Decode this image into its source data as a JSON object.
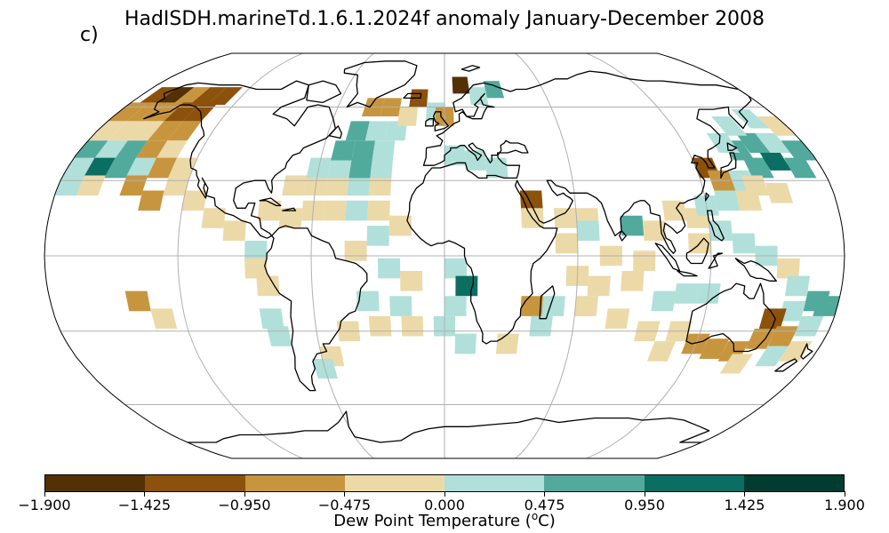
{
  "title": "HadISDH.marineTd.1.6.1.2024f anomaly January-December 2008",
  "panel_label": "c)",
  "colorbar": {
    "label_prefix": "Dew Point Temperature (",
    "label_sup": "o",
    "label_suffix": "C)",
    "ticks": [
      "−1.900",
      "−1.425",
      "−0.950",
      "−0.475",
      "0.000",
      "0.475",
      "0.950",
      "1.425",
      "1.900"
    ],
    "colors": [
      "#543005",
      "#8c510a",
      "#c8953f",
      "#ecd9a8",
      "#b0e0d9",
      "#52aa9d",
      "#0b6e62",
      "#003c30"
    ]
  },
  "map": {
    "projection": "Robinson",
    "ocean_fill": "#ffffff",
    "gridline_color": "#b0b0b0",
    "coastline_color": "#000000"
  },
  "cells": [
    {
      "c": 1,
      "lon": -170,
      "lat": 65
    },
    {
      "c": 0,
      "lon": -160,
      "lat": 65
    },
    {
      "c": 2,
      "lon": -150,
      "lat": 65
    },
    {
      "c": 1,
      "lon": -140,
      "lat": 65
    },
    {
      "c": 1,
      "lon": -130,
      "lat": 65
    },
    {
      "c": 2,
      "lon": -175,
      "lat": 58
    },
    {
      "c": 2,
      "lon": -165,
      "lat": 58
    },
    {
      "c": 2,
      "lon": -155,
      "lat": 58
    },
    {
      "c": 1,
      "lon": -145,
      "lat": 58
    },
    {
      "c": 1,
      "lon": -135,
      "lat": 58
    },
    {
      "c": 3,
      "lon": -175,
      "lat": 50
    },
    {
      "c": 3,
      "lon": -165,
      "lat": 50
    },
    {
      "c": 3,
      "lon": -155,
      "lat": 50
    },
    {
      "c": 2,
      "lon": -145,
      "lat": 50
    },
    {
      "c": 2,
      "lon": -135,
      "lat": 50
    },
    {
      "c": 5,
      "lon": -175,
      "lat": 42
    },
    {
      "c": 4,
      "lon": -165,
      "lat": 42
    },
    {
      "c": 5,
      "lon": -155,
      "lat": 42
    },
    {
      "c": 2,
      "lon": -145,
      "lat": 42
    },
    {
      "c": 3,
      "lon": -135,
      "lat": 42
    },
    {
      "c": 4,
      "lon": -175,
      "lat": 35
    },
    {
      "c": 6,
      "lon": -165,
      "lat": 35
    },
    {
      "c": 5,
      "lon": -155,
      "lat": 35
    },
    {
      "c": 4,
      "lon": -145,
      "lat": 35
    },
    {
      "c": 2,
      "lon": -135,
      "lat": 35
    },
    {
      "c": 3,
      "lon": -125,
      "lat": 35
    },
    {
      "c": 4,
      "lon": -175,
      "lat": 28
    },
    {
      "c": 3,
      "lon": -165,
      "lat": 28
    },
    {
      "c": 2,
      "lon": -145,
      "lat": 28
    },
    {
      "c": 3,
      "lon": -125,
      "lat": 28
    },
    {
      "c": 2,
      "lon": -135,
      "lat": 22
    },
    {
      "c": 3,
      "lon": -115,
      "lat": 22
    },
    {
      "c": 3,
      "lon": -105,
      "lat": 15
    },
    {
      "c": 3,
      "lon": -95,
      "lat": 10
    },
    {
      "c": 4,
      "lon": -85,
      "lat": 2
    },
    {
      "c": 3,
      "lon": -85,
      "lat": -5
    },
    {
      "c": 3,
      "lon": -80,
      "lat": -12
    },
    {
      "c": 2,
      "lon": -140,
      "lat": -18
    },
    {
      "c": 3,
      "lon": -130,
      "lat": -25
    },
    {
      "c": 4,
      "lon": -80,
      "lat": -25
    },
    {
      "c": 4,
      "lon": -78,
      "lat": -32
    },
    {
      "c": 3,
      "lon": -70,
      "lat": 28
    },
    {
      "c": 3,
      "lon": -60,
      "lat": 28
    },
    {
      "c": 3,
      "lon": -50,
      "lat": 28
    },
    {
      "c": 4,
      "lon": -40,
      "lat": 28
    },
    {
      "c": 3,
      "lon": -30,
      "lat": 28
    },
    {
      "c": 4,
      "lon": -60,
      "lat": 35
    },
    {
      "c": 4,
      "lon": -50,
      "lat": 35
    },
    {
      "c": 5,
      "lon": -40,
      "lat": 35
    },
    {
      "c": 4,
      "lon": -30,
      "lat": 35
    },
    {
      "c": 5,
      "lon": -50,
      "lat": 42
    },
    {
      "c": 5,
      "lon": -40,
      "lat": 42
    },
    {
      "c": 4,
      "lon": -30,
      "lat": 42
    },
    {
      "c": 5,
      "lon": -45,
      "lat": 50
    },
    {
      "c": 4,
      "lon": -35,
      "lat": 50
    },
    {
      "c": 4,
      "lon": -25,
      "lat": 50
    },
    {
      "c": 2,
      "lon": -40,
      "lat": 60
    },
    {
      "c": 2,
      "lon": -30,
      "lat": 60
    },
    {
      "c": 3,
      "lon": -20,
      "lat": 56
    },
    {
      "c": 1,
      "lon": -15,
      "lat": 64
    },
    {
      "c": 4,
      "lon": -5,
      "lat": 58
    },
    {
      "c": 2,
      "lon": 0,
      "lat": 56
    },
    {
      "c": 0,
      "lon": 10,
      "lat": 70
    },
    {
      "c": 4,
      "lon": 20,
      "lat": 65
    },
    {
      "c": 5,
      "lon": 30,
      "lat": 68
    },
    {
      "c": 3,
      "lon": -80,
      "lat": 18
    },
    {
      "c": 3,
      "lon": -70,
      "lat": 15
    },
    {
      "c": 3,
      "lon": -60,
      "lat": 18
    },
    {
      "c": 3,
      "lon": -50,
      "lat": 18
    },
    {
      "c": 4,
      "lon": -40,
      "lat": 18
    },
    {
      "c": 3,
      "lon": -30,
      "lat": 18
    },
    {
      "c": 3,
      "lon": -20,
      "lat": 12
    },
    {
      "c": 4,
      "lon": -30,
      "lat": 8
    },
    {
      "c": 3,
      "lon": -40,
      "lat": 2
    },
    {
      "c": 4,
      "lon": -25,
      "lat": -5
    },
    {
      "c": 3,
      "lon": -15,
      "lat": -10
    },
    {
      "c": 4,
      "lon": -20,
      "lat": -20
    },
    {
      "c": 3,
      "lon": -30,
      "lat": -28
    },
    {
      "c": 3,
      "lon": -15,
      "lat": -28
    },
    {
      "c": 4,
      "lon": 0,
      "lat": -28
    },
    {
      "c": 4,
      "lon": 5,
      "lat": -5
    },
    {
      "c": 6,
      "lon": 10,
      "lat": -12
    },
    {
      "c": 4,
      "lon": 5,
      "lat": -20
    },
    {
      "c": 4,
      "lon": -35,
      "lat": -18
    },
    {
      "c": 3,
      "lon": -45,
      "lat": -30
    },
    {
      "c": 3,
      "lon": -55,
      "lat": -40
    },
    {
      "c": 4,
      "lon": -60,
      "lat": -45
    },
    {
      "c": 4,
      "lon": 10,
      "lat": -35
    },
    {
      "c": 3,
      "lon": 30,
      "lat": -35
    },
    {
      "c": 4,
      "lon": 5,
      "lat": 40
    },
    {
      "c": 4,
      "lon": 15,
      "lat": 38
    },
    {
      "c": 4,
      "lon": 25,
      "lat": 35
    },
    {
      "c": 1,
      "lon": 40,
      "lat": 22
    },
    {
      "c": 3,
      "lon": 40,
      "lat": 15
    },
    {
      "c": 3,
      "lon": 55,
      "lat": 15
    },
    {
      "c": 3,
      "lon": 65,
      "lat": 15
    },
    {
      "c": 4,
      "lon": 65,
      "lat": 10
    },
    {
      "c": 5,
      "lon": 85,
      "lat": 12
    },
    {
      "c": 3,
      "lon": 95,
      "lat": 10
    },
    {
      "c": 3,
      "lon": 55,
      "lat": 5
    },
    {
      "c": 3,
      "lon": 75,
      "lat": 0
    },
    {
      "c": 3,
      "lon": 90,
      "lat": -2
    },
    {
      "c": 3,
      "lon": 60,
      "lat": -8
    },
    {
      "c": 3,
      "lon": 70,
      "lat": -12
    },
    {
      "c": 3,
      "lon": 85,
      "lat": -10
    },
    {
      "c": 2,
      "lon": 40,
      "lat": -20
    },
    {
      "c": 4,
      "lon": 50,
      "lat": -20
    },
    {
      "c": 3,
      "lon": 65,
      "lat": -20
    },
    {
      "c": 4,
      "lon": 45,
      "lat": -28
    },
    {
      "c": 3,
      "lon": 80,
      "lat": -25
    },
    {
      "c": 3,
      "lon": 95,
      "lat": -30
    },
    {
      "c": 4,
      "lon": 100,
      "lat": -18
    },
    {
      "c": 3,
      "lon": 105,
      "lat": 18
    },
    {
      "c": 3,
      "lon": 115,
      "lat": 15
    },
    {
      "c": 4,
      "lon": 120,
      "lat": 20
    },
    {
      "c": 4,
      "lon": 130,
      "lat": 22
    },
    {
      "c": 3,
      "lon": 140,
      "lat": 22
    },
    {
      "c": 4,
      "lon": 125,
      "lat": 10
    },
    {
      "c": 3,
      "lon": 115,
      "lat": 5
    },
    {
      "c": 4,
      "lon": 135,
      "lat": 5
    },
    {
      "c": 4,
      "lon": 145,
      "lat": 0
    },
    {
      "c": 3,
      "lon": 155,
      "lat": -5
    },
    {
      "c": 4,
      "lon": 160,
      "lat": -12
    },
    {
      "c": 5,
      "lon": 170,
      "lat": -18
    },
    {
      "c": 4,
      "lon": 160,
      "lat": -22
    },
    {
      "c": 1,
      "lon": 125,
      "lat": 35
    },
    {
      "c": 2,
      "lon": 130,
      "lat": 30
    },
    {
      "c": 4,
      "lon": 140,
      "lat": 30
    },
    {
      "c": 5,
      "lon": 150,
      "lat": 35
    },
    {
      "c": 6,
      "lon": 160,
      "lat": 38
    },
    {
      "c": 5,
      "lon": 170,
      "lat": 35
    },
    {
      "c": 5,
      "lon": 145,
      "lat": 42
    },
    {
      "c": 5,
      "lon": 155,
      "lat": 45
    },
    {
      "c": 4,
      "lon": 165,
      "lat": 45
    },
    {
      "c": 5,
      "lon": 175,
      "lat": 42
    },
    {
      "c": 4,
      "lon": 150,
      "lat": 52
    },
    {
      "c": 4,
      "lon": 165,
      "lat": 55
    },
    {
      "c": 3,
      "lon": 175,
      "lat": 52
    },
    {
      "c": 4,
      "lon": 140,
      "lat": 45
    },
    {
      "c": 3,
      "lon": 145,
      "lat": 28
    },
    {
      "c": 3,
      "lon": 155,
      "lat": 25
    },
    {
      "c": 2,
      "lon": 120,
      "lat": -35
    },
    {
      "c": 2,
      "lon": 130,
      "lat": -37
    },
    {
      "c": 2,
      "lon": 140,
      "lat": -38
    },
    {
      "c": 2,
      "lon": 150,
      "lat": -33
    },
    {
      "c": 1,
      "lon": 152,
      "lat": -25
    },
    {
      "c": 2,
      "lon": 160,
      "lat": -32
    },
    {
      "c": 3,
      "lon": 110,
      "lat": -30
    },
    {
      "c": 3,
      "lon": 105,
      "lat": -38
    },
    {
      "c": 3,
      "lon": 145,
      "lat": -43
    },
    {
      "c": 4,
      "lon": 160,
      "lat": -40
    },
    {
      "c": 4,
      "lon": 170,
      "lat": -28
    },
    {
      "c": 5,
      "lon": 175,
      "lat": -20
    },
    {
      "c": 3,
      "lon": 170,
      "lat": -38
    },
    {
      "c": 4,
      "lon": 110,
      "lat": -15
    },
    {
      "c": 4,
      "lon": 120,
      "lat": -15
    }
  ]
}
